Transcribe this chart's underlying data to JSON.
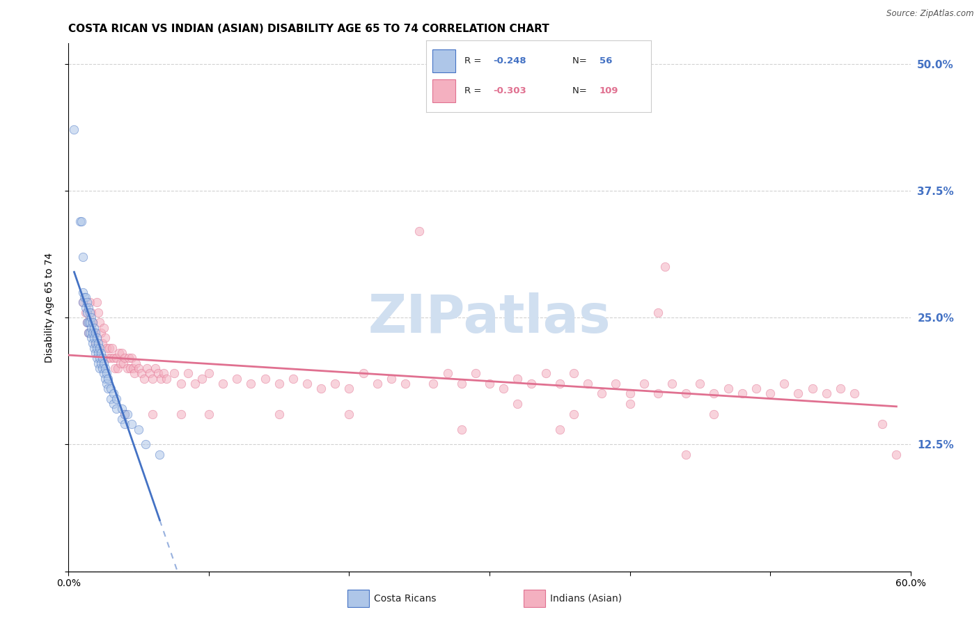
{
  "title": "COSTA RICAN VS INDIAN (ASIAN) DISABILITY AGE 65 TO 74 CORRELATION CHART",
  "source": "Source: ZipAtlas.com",
  "ylabel": "Disability Age 65 to 74",
  "xlim": [
    0.0,
    0.6
  ],
  "ylim": [
    0.0,
    0.52
  ],
  "xtick_positions": [
    0.0,
    0.1,
    0.2,
    0.3,
    0.4,
    0.5,
    0.6
  ],
  "xticklabels": [
    "0.0%",
    "",
    "",
    "",
    "",
    "",
    "60.0%"
  ],
  "right_ytick_positions": [
    0.0,
    0.125,
    0.25,
    0.375,
    0.5
  ],
  "right_yticklabels": [
    "",
    "12.5%",
    "25.0%",
    "37.5%",
    "50.0%"
  ],
  "watermark": "ZIPatlas",
  "costa_rican_color": "#aec6e8",
  "indian_color": "#f4b0c0",
  "costa_rican_line_color": "#4472c4",
  "indian_line_color": "#e07090",
  "costa_rican_scatter": [
    [
      0.004,
      0.435
    ],
    [
      0.008,
      0.345
    ],
    [
      0.009,
      0.345
    ],
    [
      0.01,
      0.31
    ],
    [
      0.01,
      0.275
    ],
    [
      0.01,
      0.265
    ],
    [
      0.011,
      0.27
    ],
    [
      0.012,
      0.27
    ],
    [
      0.012,
      0.26
    ],
    [
      0.013,
      0.265
    ],
    [
      0.013,
      0.255
    ],
    [
      0.013,
      0.245
    ],
    [
      0.014,
      0.26
    ],
    [
      0.014,
      0.245
    ],
    [
      0.014,
      0.235
    ],
    [
      0.015,
      0.255
    ],
    [
      0.015,
      0.245
    ],
    [
      0.015,
      0.235
    ],
    [
      0.016,
      0.25
    ],
    [
      0.016,
      0.24
    ],
    [
      0.016,
      0.23
    ],
    [
      0.017,
      0.245
    ],
    [
      0.017,
      0.235
    ],
    [
      0.017,
      0.225
    ],
    [
      0.018,
      0.24
    ],
    [
      0.018,
      0.23
    ],
    [
      0.018,
      0.22
    ],
    [
      0.019,
      0.235
    ],
    [
      0.019,
      0.225
    ],
    [
      0.019,
      0.215
    ],
    [
      0.02,
      0.23
    ],
    [
      0.02,
      0.22
    ],
    [
      0.02,
      0.21
    ],
    [
      0.021,
      0.225
    ],
    [
      0.021,
      0.215
    ],
    [
      0.021,
      0.205
    ],
    [
      0.022,
      0.22
    ],
    [
      0.022,
      0.21
    ],
    [
      0.022,
      0.2
    ],
    [
      0.023,
      0.215
    ],
    [
      0.023,
      0.205
    ],
    [
      0.024,
      0.21
    ],
    [
      0.024,
      0.2
    ],
    [
      0.025,
      0.205
    ],
    [
      0.025,
      0.195
    ],
    [
      0.026,
      0.2
    ],
    [
      0.026,
      0.19
    ],
    [
      0.027,
      0.195
    ],
    [
      0.027,
      0.185
    ],
    [
      0.028,
      0.19
    ],
    [
      0.028,
      0.18
    ],
    [
      0.03,
      0.18
    ],
    [
      0.03,
      0.17
    ],
    [
      0.032,
      0.175
    ],
    [
      0.032,
      0.165
    ],
    [
      0.034,
      0.17
    ],
    [
      0.034,
      0.16
    ],
    [
      0.038,
      0.16
    ],
    [
      0.038,
      0.15
    ],
    [
      0.04,
      0.155
    ],
    [
      0.04,
      0.145
    ],
    [
      0.042,
      0.155
    ],
    [
      0.045,
      0.145
    ],
    [
      0.05,
      0.14
    ],
    [
      0.055,
      0.125
    ],
    [
      0.065,
      0.115
    ]
  ],
  "indian_scatter": [
    [
      0.01,
      0.265
    ],
    [
      0.012,
      0.255
    ],
    [
      0.013,
      0.245
    ],
    [
      0.014,
      0.235
    ],
    [
      0.015,
      0.265
    ],
    [
      0.016,
      0.255
    ],
    [
      0.017,
      0.245
    ],
    [
      0.018,
      0.235
    ],
    [
      0.019,
      0.225
    ],
    [
      0.02,
      0.265
    ],
    [
      0.021,
      0.255
    ],
    [
      0.022,
      0.245
    ],
    [
      0.023,
      0.235
    ],
    [
      0.024,
      0.225
    ],
    [
      0.025,
      0.24
    ],
    [
      0.026,
      0.23
    ],
    [
      0.027,
      0.22
    ],
    [
      0.028,
      0.21
    ],
    [
      0.029,
      0.22
    ],
    [
      0.03,
      0.21
    ],
    [
      0.031,
      0.22
    ],
    [
      0.032,
      0.21
    ],
    [
      0.033,
      0.2
    ],
    [
      0.034,
      0.21
    ],
    [
      0.035,
      0.2
    ],
    [
      0.036,
      0.215
    ],
    [
      0.037,
      0.205
    ],
    [
      0.038,
      0.215
    ],
    [
      0.039,
      0.205
    ],
    [
      0.04,
      0.21
    ],
    [
      0.042,
      0.2
    ],
    [
      0.043,
      0.21
    ],
    [
      0.044,
      0.2
    ],
    [
      0.045,
      0.21
    ],
    [
      0.046,
      0.2
    ],
    [
      0.047,
      0.195
    ],
    [
      0.048,
      0.205
    ],
    [
      0.05,
      0.2
    ],
    [
      0.052,
      0.195
    ],
    [
      0.054,
      0.19
    ],
    [
      0.056,
      0.2
    ],
    [
      0.058,
      0.195
    ],
    [
      0.06,
      0.19
    ],
    [
      0.062,
      0.2
    ],
    [
      0.064,
      0.195
    ],
    [
      0.066,
      0.19
    ],
    [
      0.068,
      0.195
    ],
    [
      0.07,
      0.19
    ],
    [
      0.075,
      0.195
    ],
    [
      0.08,
      0.185
    ],
    [
      0.085,
      0.195
    ],
    [
      0.09,
      0.185
    ],
    [
      0.095,
      0.19
    ],
    [
      0.1,
      0.195
    ],
    [
      0.11,
      0.185
    ],
    [
      0.12,
      0.19
    ],
    [
      0.13,
      0.185
    ],
    [
      0.14,
      0.19
    ],
    [
      0.15,
      0.185
    ],
    [
      0.16,
      0.19
    ],
    [
      0.17,
      0.185
    ],
    [
      0.18,
      0.18
    ],
    [
      0.19,
      0.185
    ],
    [
      0.2,
      0.18
    ],
    [
      0.21,
      0.195
    ],
    [
      0.22,
      0.185
    ],
    [
      0.23,
      0.19
    ],
    [
      0.24,
      0.185
    ],
    [
      0.25,
      0.335
    ],
    [
      0.26,
      0.185
    ],
    [
      0.27,
      0.195
    ],
    [
      0.28,
      0.185
    ],
    [
      0.29,
      0.195
    ],
    [
      0.3,
      0.185
    ],
    [
      0.31,
      0.18
    ],
    [
      0.32,
      0.19
    ],
    [
      0.33,
      0.185
    ],
    [
      0.34,
      0.195
    ],
    [
      0.35,
      0.185
    ],
    [
      0.36,
      0.195
    ],
    [
      0.37,
      0.185
    ],
    [
      0.38,
      0.175
    ],
    [
      0.39,
      0.185
    ],
    [
      0.4,
      0.175
    ],
    [
      0.41,
      0.185
    ],
    [
      0.42,
      0.175
    ],
    [
      0.425,
      0.3
    ],
    [
      0.43,
      0.185
    ],
    [
      0.44,
      0.175
    ],
    [
      0.45,
      0.185
    ],
    [
      0.46,
      0.175
    ],
    [
      0.47,
      0.18
    ],
    [
      0.48,
      0.175
    ],
    [
      0.49,
      0.18
    ],
    [
      0.5,
      0.175
    ],
    [
      0.51,
      0.185
    ],
    [
      0.52,
      0.175
    ],
    [
      0.53,
      0.18
    ],
    [
      0.54,
      0.175
    ],
    [
      0.55,
      0.18
    ],
    [
      0.56,
      0.175
    ],
    [
      0.58,
      0.145
    ],
    [
      0.59,
      0.115
    ],
    [
      0.42,
      0.255
    ],
    [
      0.44,
      0.115
    ],
    [
      0.35,
      0.14
    ],
    [
      0.28,
      0.14
    ],
    [
      0.2,
      0.155
    ],
    [
      0.15,
      0.155
    ],
    [
      0.1,
      0.155
    ],
    [
      0.08,
      0.155
    ],
    [
      0.06,
      0.155
    ],
    [
      0.04,
      0.155
    ],
    [
      0.32,
      0.165
    ],
    [
      0.36,
      0.155
    ],
    [
      0.4,
      0.165
    ],
    [
      0.46,
      0.155
    ]
  ],
  "background_color": "#ffffff",
  "grid_color": "#cccccc",
  "title_fontsize": 11,
  "axis_label_fontsize": 10,
  "tick_fontsize": 9,
  "right_tick_color": "#4472c4",
  "scatter_size": 80,
  "scatter_alpha": 0.55,
  "watermark_color": "#d0dff0",
  "watermark_fontsize": 55,
  "legend_R1": "-0.248",
  "legend_N1": "56",
  "legend_R2": "-0.303",
  "legend_N2": "109"
}
